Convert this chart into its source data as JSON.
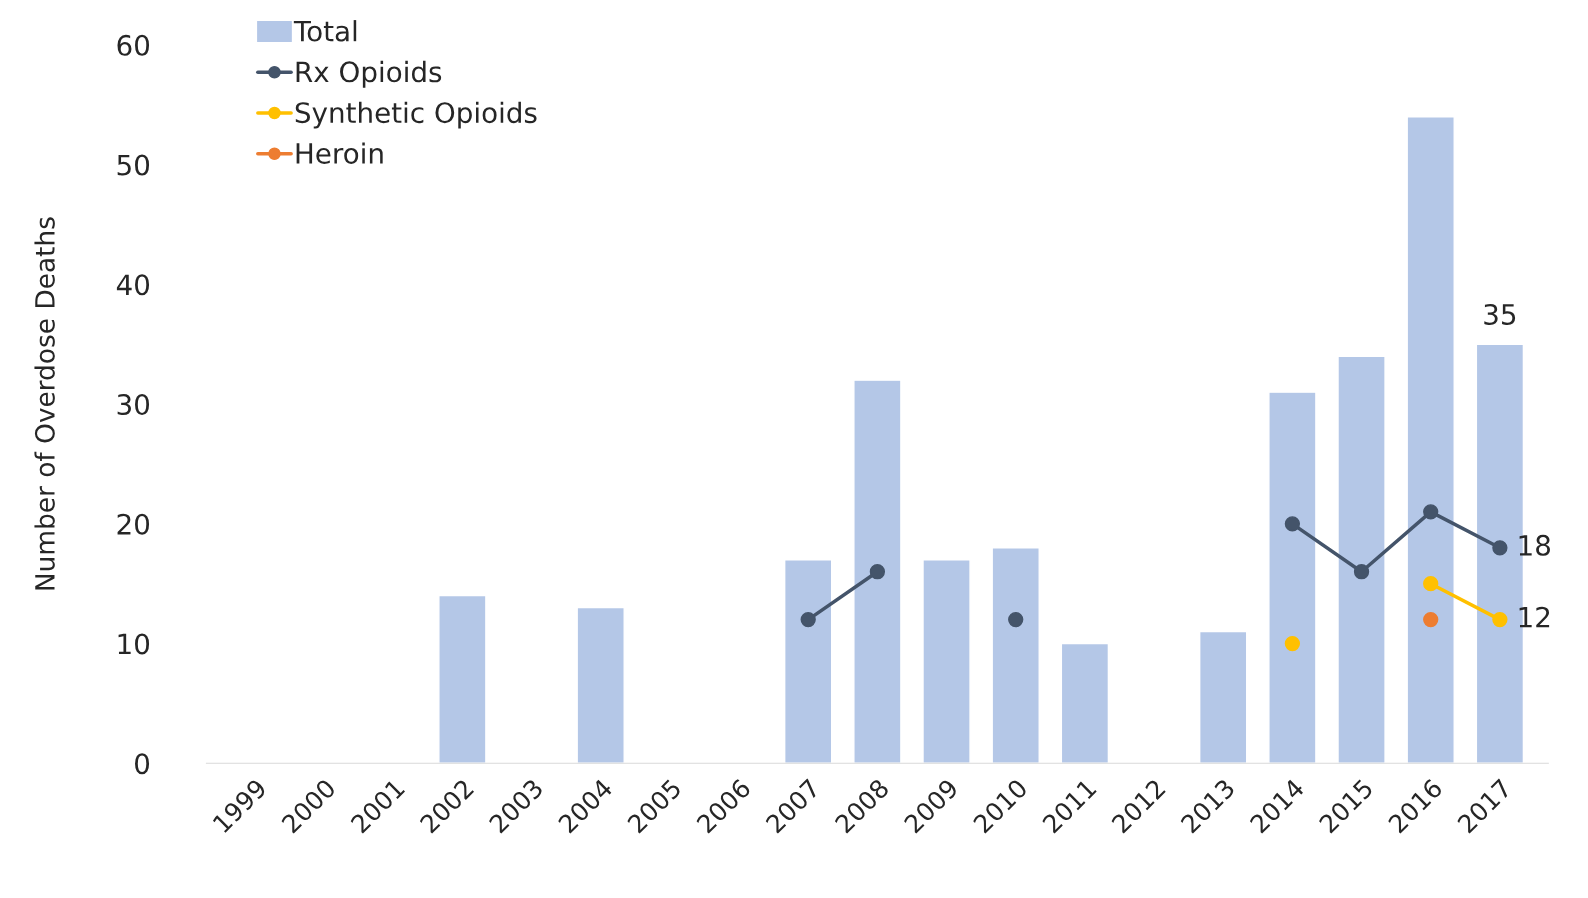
{
  "chart_data": {
    "type": "bar",
    "ylabel": "Number of Overdose Deaths",
    "categories": [
      "1999",
      "2000",
      "2001",
      "2002",
      "2003",
      "2004",
      "2005",
      "2006",
      "2007",
      "2008",
      "2009",
      "2010",
      "2011",
      "2012",
      "2013",
      "2014",
      "2015",
      "2016",
      "2017"
    ],
    "series": [
      {
        "name": "Total",
        "color": "#b4c7e7",
        "values": [
          null,
          null,
          null,
          14,
          null,
          13,
          null,
          null,
          17,
          32,
          17,
          18,
          10,
          null,
          11,
          31,
          34,
          54,
          35
        ],
        "value_labels": [
          null,
          null,
          null,
          null,
          null,
          null,
          null,
          null,
          null,
          null,
          null,
          null,
          null,
          null,
          null,
          null,
          null,
          null,
          "35"
        ]
      },
      {
        "name": "Rx Opioids",
        "type": "line",
        "color": "#44546a",
        "values": [
          null,
          null,
          null,
          null,
          null,
          null,
          null,
          null,
          12,
          16,
          null,
          12,
          null,
          null,
          null,
          20,
          16,
          21,
          18
        ],
        "value_labels": [
          null,
          null,
          null,
          null,
          null,
          null,
          null,
          null,
          null,
          null,
          null,
          null,
          null,
          null,
          null,
          null,
          null,
          null,
          "18"
        ]
      },
      {
        "name": "Synthetic Opioids",
        "type": "line",
        "color": "#ffc000",
        "values": [
          null,
          null,
          null,
          null,
          null,
          null,
          null,
          null,
          null,
          null,
          null,
          null,
          null,
          null,
          null,
          10,
          null,
          15,
          12
        ],
        "value_labels": [
          null,
          null,
          null,
          null,
          null,
          null,
          null,
          null,
          null,
          null,
          null,
          null,
          null,
          null,
          null,
          null,
          null,
          null,
          "12"
        ]
      },
      {
        "name": "Heroin",
        "type": "line",
        "color": "#ed7d31",
        "values": [
          null,
          null,
          null,
          null,
          null,
          null,
          null,
          null,
          null,
          null,
          null,
          null,
          null,
          null,
          null,
          null,
          null,
          12,
          null
        ]
      }
    ],
    "ylim": [
      0,
      60
    ],
    "yticks": [
      0,
      10,
      20,
      30,
      40,
      50,
      60
    ],
    "grid": false,
    "legend": "top left",
    "marker": "circle"
  }
}
